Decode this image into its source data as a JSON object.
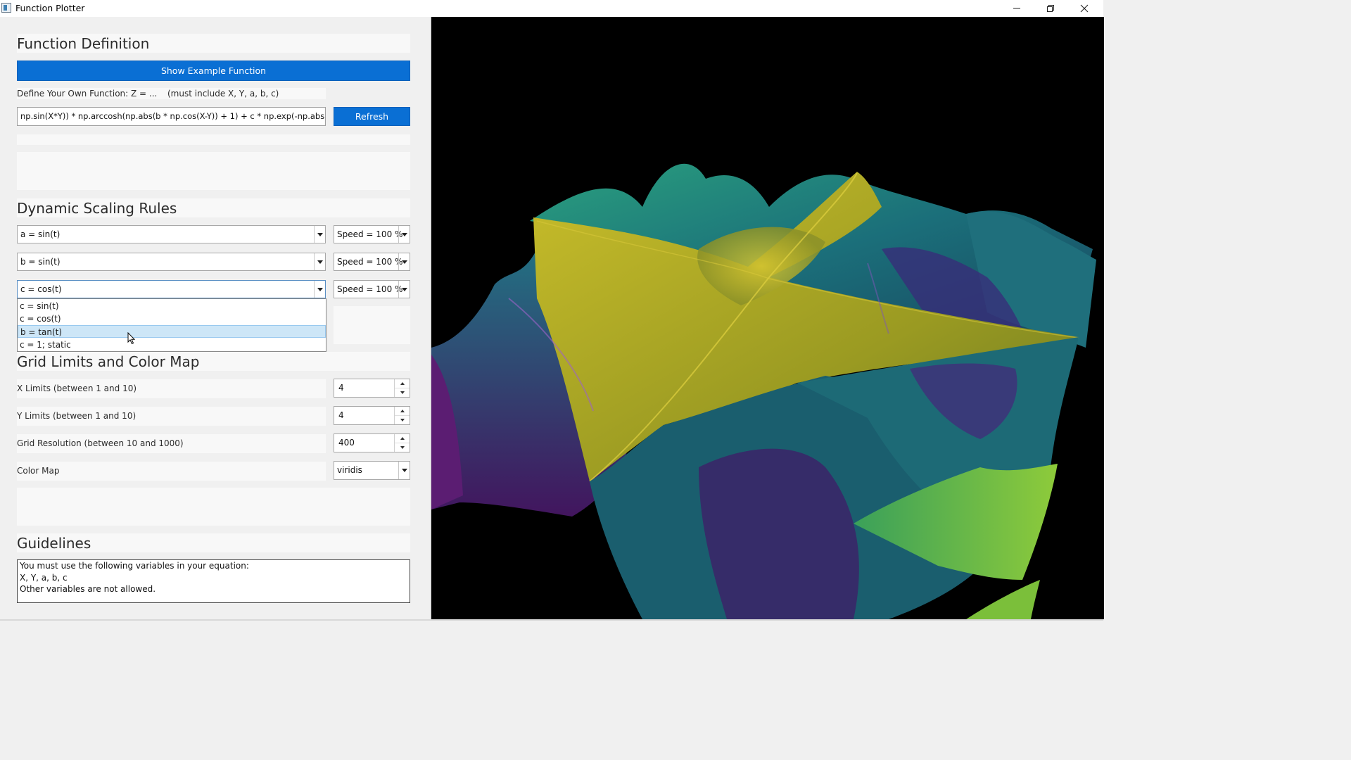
{
  "window": {
    "title": "Function Plotter"
  },
  "function_definition": {
    "heading": "Function Definition",
    "example_button": "Show Example Function",
    "define_label": "Define Your Own Function: Z = ...",
    "hint": "(must include X, Y, a, b, c)",
    "expression": "np.sin(X*Y)) * np.arccosh(np.abs(b * np.cos(X-Y)) + 1) + c * np.exp(-np.abs(X*Y))",
    "refresh_button": "Refresh"
  },
  "scaling": {
    "heading": "Dynamic Scaling Rules",
    "rules": [
      {
        "rule": "a = sin(t)",
        "speed": "Speed = 100 %"
      },
      {
        "rule": "b = sin(t)",
        "speed": "Speed = 100 %"
      },
      {
        "rule": "c = cos(t)",
        "speed": "Speed = 100 %"
      }
    ],
    "open_dropdown_options": [
      "c = sin(t)",
      "c = cos(t)",
      "b = tan(t)",
      "c = 1; static"
    ],
    "highlighted_option": "b = tan(t)"
  },
  "grid": {
    "heading": "Grid Limits and Color Map",
    "x_limits_label": "X Limits (between 1 and 10)",
    "x_limits_value": "4",
    "y_limits_label": "Y Limits (between 1 and 10)",
    "y_limits_value": "4",
    "resolution_label": "Grid Resolution (between 10 and 1000)",
    "resolution_value": "400",
    "colormap_label": "Color Map",
    "colormap_value": "viridis"
  },
  "guidelines": {
    "heading": "Guidelines",
    "lines": [
      "You must use the following variables in your equation:",
      "X, Y, a, b, c",
      "Other variables are not allowed."
    ]
  },
  "colors": {
    "accent": "#0a6fd4",
    "plot_background": "#000000",
    "surface_yellow": "#b5b021",
    "surface_teal": "#1f8a80",
    "surface_purple": "#5a1f7a",
    "surface_green": "#6fb83a"
  },
  "icons": {
    "app": "app-window-icon",
    "minimize": "minimize-icon",
    "maximize": "restore-icon",
    "close": "close-icon"
  }
}
